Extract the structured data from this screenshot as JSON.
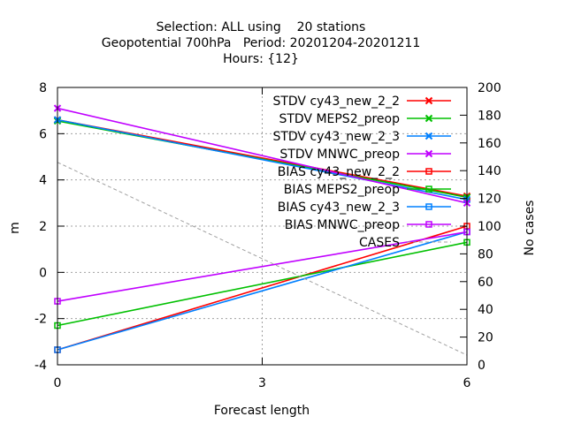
{
  "chart_data": {
    "type": "line",
    "title": [
      "Selection: ALL using    20 stations",
      "Geopotential 700hPa   Period: 20201204-20201211",
      "Hours: {12}"
    ],
    "xlabel": "Forecast length",
    "ylabel": "m",
    "y2label": "No cases",
    "x": [
      0,
      6
    ],
    "xticks": [
      "0",
      "3",
      "6"
    ],
    "xlim": [
      0,
      6
    ],
    "ylim": [
      -4,
      8
    ],
    "yticks": [
      "-4",
      "-2",
      "0",
      "2",
      "4",
      "6",
      "8"
    ],
    "y2lim": [
      0,
      200
    ],
    "y2ticks": [
      "0",
      "20",
      "40",
      "60",
      "80",
      "100",
      "120",
      "140",
      "160",
      "180",
      "200"
    ],
    "grid": true,
    "legend_position": "top-right",
    "series": [
      {
        "name": "STDV cy43_new_2_2",
        "color": "#ff0000",
        "marker": "x",
        "axis": "y",
        "values": [
          6.6,
          3.3
        ]
      },
      {
        "name": "STDV MEPS2_preop",
        "color": "#00c000",
        "marker": "x",
        "axis": "y",
        "values": [
          6.55,
          3.25
        ]
      },
      {
        "name": "STDV cy43_new_2_3",
        "color": "#0080ff",
        "marker": "x",
        "axis": "y",
        "values": [
          6.6,
          3.15
        ]
      },
      {
        "name": "STDV MNWC_preop",
        "color": "#c000ff",
        "marker": "x",
        "axis": "y",
        "values": [
          7.1,
          3.0
        ]
      },
      {
        "name": "BIAS cy43_new_2_2",
        "color": "#ff0000",
        "marker": "square",
        "axis": "y",
        "values": [
          -3.35,
          2.0
        ]
      },
      {
        "name": "BIAS MEPS2_preop",
        "color": "#00c000",
        "marker": "square",
        "axis": "y",
        "values": [
          -2.3,
          1.3
        ]
      },
      {
        "name": "BIAS cy43_new_2_3",
        "color": "#0080ff",
        "marker": "square",
        "axis": "y",
        "values": [
          -3.35,
          1.75
        ]
      },
      {
        "name": "BIAS MNWC_preop",
        "color": "#c000ff",
        "marker": "square",
        "axis": "y",
        "values": [
          -1.25,
          1.75
        ]
      },
      {
        "name": "CASES",
        "color": "#a0a0a0",
        "marker": "none",
        "dashed": true,
        "axis": "y2",
        "values": [
          146,
          7
        ]
      }
    ]
  }
}
